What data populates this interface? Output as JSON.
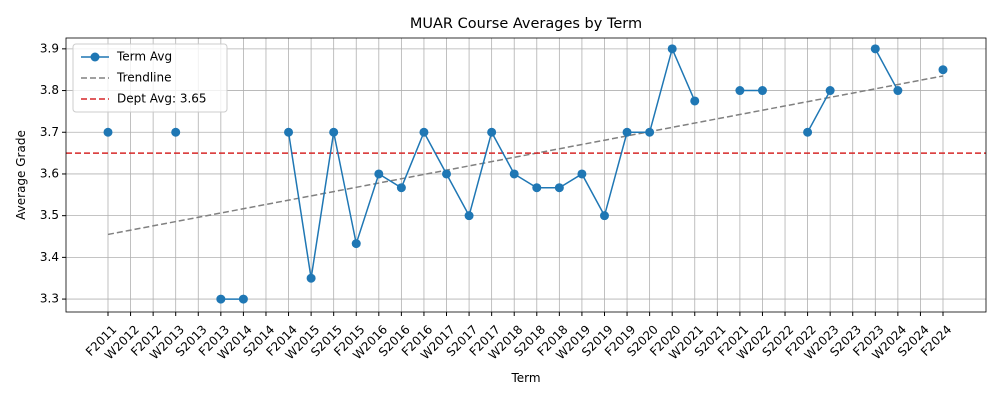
{
  "chart_data": {
    "type": "line",
    "title": "MUAR Course Averages by Term",
    "x_label": "Term",
    "y_label": "Average Grade",
    "categories": [
      "F2011",
      "W2012",
      "F2012",
      "W2013",
      "S2013",
      "F2013",
      "W2014",
      "S2014",
      "F2014",
      "W2015",
      "S2015",
      "F2015",
      "W2016",
      "S2016",
      "F2016",
      "W2017",
      "S2017",
      "F2017",
      "W2018",
      "S2018",
      "F2018",
      "W2019",
      "S2019",
      "F2019",
      "S2020",
      "F2020",
      "W2021",
      "S2021",
      "F2021",
      "W2022",
      "S2022",
      "F2022",
      "W2023",
      "S2023",
      "F2023",
      "W2024",
      "S2024",
      "F2024"
    ],
    "series": [
      {
        "name": "Term Avg",
        "color": "#1f77b4",
        "values": [
          3.7,
          null,
          null,
          3.7,
          null,
          3.3,
          3.3,
          null,
          3.7,
          3.35,
          3.7,
          3.433,
          3.6,
          3.567,
          3.7,
          3.6,
          3.5,
          3.7,
          3.6,
          3.567,
          3.567,
          3.6,
          3.5,
          3.7,
          3.7,
          3.9,
          3.775,
          null,
          3.8,
          3.8,
          null,
          3.7,
          3.8,
          null,
          3.9,
          3.8,
          null,
          3.85
        ]
      }
    ],
    "trendline": {
      "name": "Trendline",
      "color": "#808080",
      "start": 3.455,
      "end": 3.835
    },
    "reference_line": {
      "name": "Dept Avg: 3.65",
      "value": 3.65,
      "color": "#d62728"
    },
    "ylim": [
      3.269,
      3.926
    ],
    "yticks": [
      3.3,
      3.4,
      3.5,
      3.6,
      3.7,
      3.8,
      3.9
    ],
    "grid": true,
    "legend": "upper-left"
  }
}
